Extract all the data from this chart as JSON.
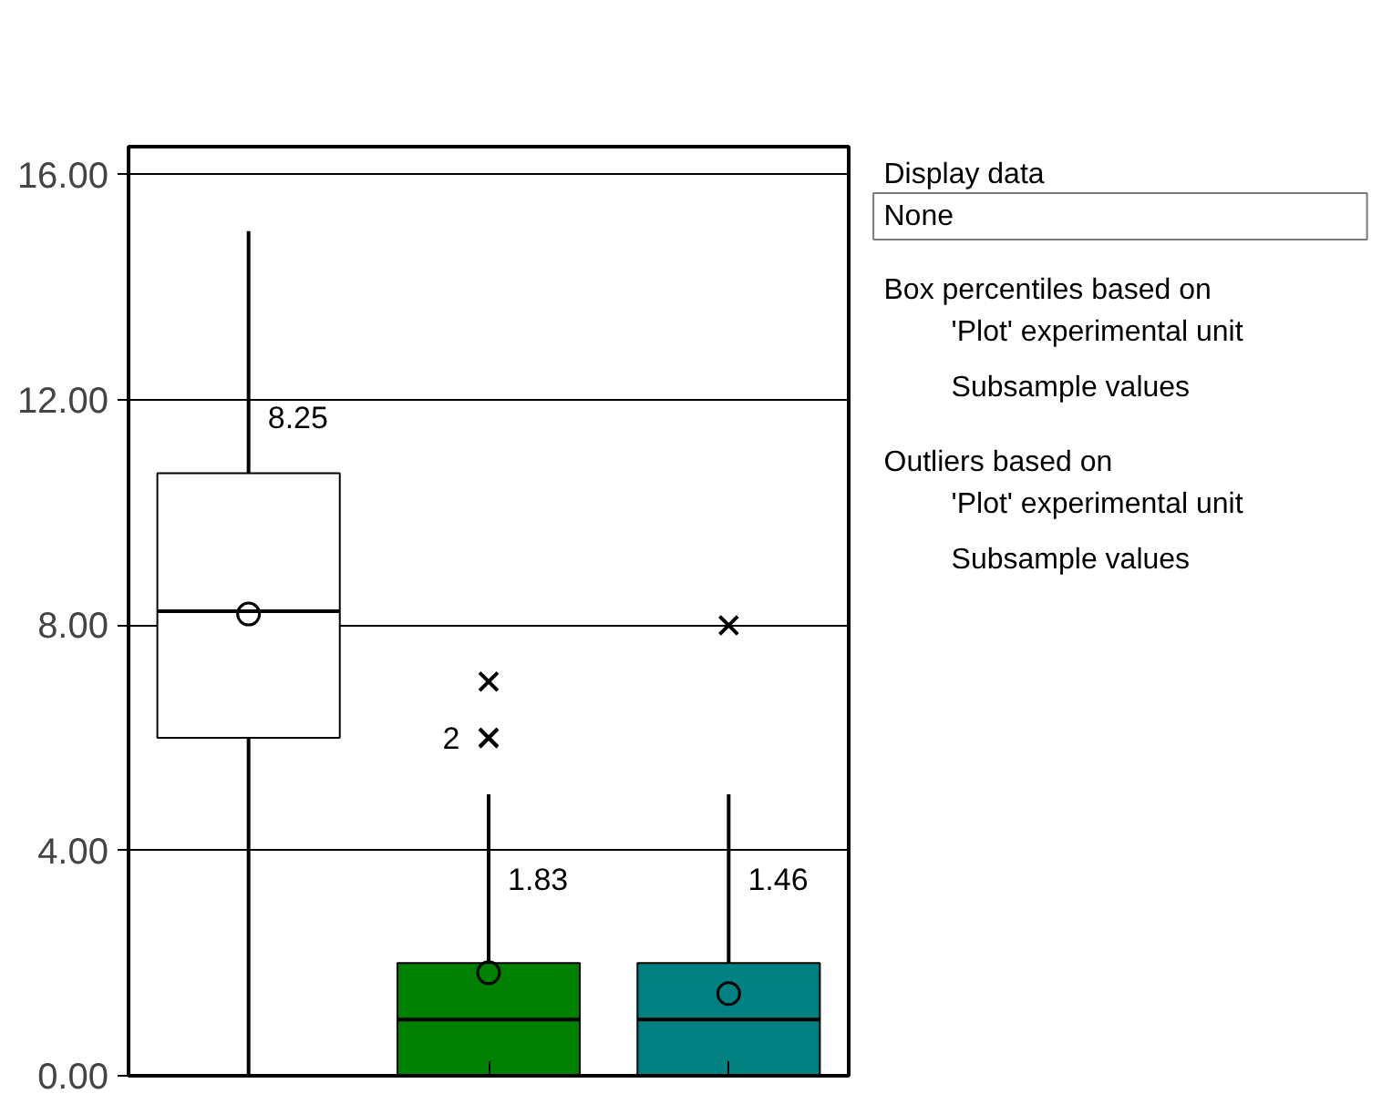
{
  "chart_data": {
    "type": "box",
    "categories": [
      null,
      null,
      null
    ],
    "boxes": [
      {
        "low": 0,
        "q1": 6.0,
        "median": 8.25,
        "q3": 10.7,
        "high": 15.0,
        "mean": 8.2
      },
      {
        "low": 0,
        "q1": 0,
        "median": 1.0,
        "q3": 2.0,
        "high": 5.0,
        "mean": 1.83,
        "outliers": [
          7.0,
          6.0,
          6.0
        ]
      },
      {
        "low": 0,
        "q1": 0,
        "median": 1.0,
        "q3": 2.0,
        "high": 5.0,
        "mean": 1.46,
        "outliers": [
          8.0
        ]
      }
    ],
    "colors": [
      "#ffffff",
      "#008000",
      "#008080"
    ],
    "ylim": [
      0,
      16.5
    ],
    "yticks": [
      {
        "value": 0,
        "label": "0.00"
      },
      {
        "value": 4,
        "label": "4.00"
      },
      {
        "value": 8,
        "label": "8.00"
      },
      {
        "value": 12,
        "label": "12.00"
      },
      {
        "value": 16,
        "label": "16.00"
      }
    ],
    "grid": "y",
    "tick_labels": "y",
    "marker": "cross",
    "annotations": [
      "8.25",
      "1.83",
      "1.46",
      "2",
      "Display data",
      "None",
      "Box percentiles based on",
      "'Plot' experimental unit",
      "Subsample values",
      "Outliers based on",
      "'Plot' experimental unit",
      "Subsample values"
    ]
  }
}
